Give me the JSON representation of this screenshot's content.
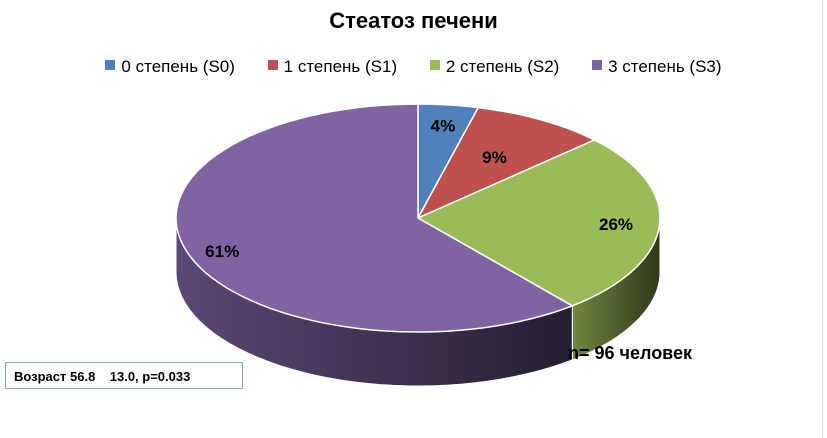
{
  "chart_data": {
    "type": "pie",
    "title": "Стеатоз печени",
    "categories": [
      "0 степень (S0)",
      "1 степень (S1)",
      "2 степень (S2)",
      "3 степень (S3)"
    ],
    "values": [
      4,
      9,
      26,
      61
    ],
    "labels": [
      "4%",
      "9%",
      "26%",
      "61%"
    ],
    "colors": [
      "#4f81bd",
      "#c0504d",
      "#9bbb59",
      "#8064a2"
    ],
    "legend_position": "top",
    "annotation": "n= 96 человек",
    "stats_note": "Возраст 56.8    13.0, p=0.033"
  }
}
